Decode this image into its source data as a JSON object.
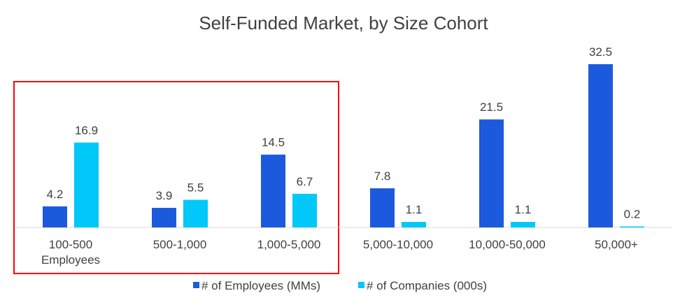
{
  "chart_data": {
    "type": "bar",
    "title": "Self-Funded Market, by Size Cohort",
    "categories": [
      [
        "100-500",
        "Employees"
      ],
      [
        "500-1,000"
      ],
      [
        "1,000-5,000"
      ],
      [
        "5,000-10,000"
      ],
      [
        "10,000-50,000"
      ],
      [
        "50,000+"
      ]
    ],
    "series": [
      {
        "name": "# of Employees (MMs)",
        "color": "#1B5ADC",
        "values": [
          4.2,
          3.9,
          14.5,
          7.8,
          21.5,
          32.5
        ]
      },
      {
        "name": "# of Companies (000s)",
        "color": "#00C8F8",
        "values": [
          16.9,
          5.5,
          6.7,
          1.1,
          1.1,
          0.2
        ]
      }
    ],
    "ylim": [
      0,
      32.5
    ],
    "grid": false,
    "legend": "bottom",
    "highlight": {
      "categories": [
        "100-500 Employees",
        "500-1,000",
        "1,000-5,000"
      ],
      "color": "#FF0000"
    }
  }
}
